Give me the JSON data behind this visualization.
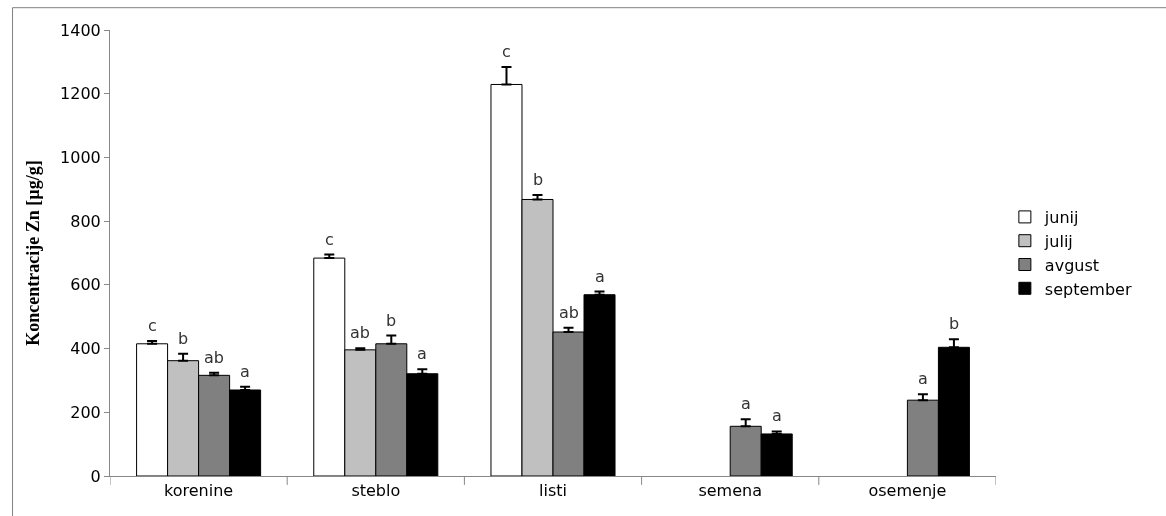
{
  "chart_data": {
    "type": "bar",
    "ylabel": "Koncentracije Zn [µg/g]",
    "categories": [
      "korenine",
      "steblo",
      "listi",
      "semena",
      "osemenje"
    ],
    "series": [
      {
        "name": "junij",
        "color": "#ffffff",
        "values": [
          415,
          684,
          1229,
          null,
          null
        ],
        "errors": [
          [
            415,
            424
          ],
          [
            684,
            695
          ],
          [
            1229,
            1284
          ],
          null,
          null
        ],
        "value_labels": [
          "c",
          "c",
          "c",
          null,
          null
        ]
      },
      {
        "name": "julij",
        "color": "#c0c0c0",
        "values": [
          362,
          396,
          868,
          null,
          null
        ],
        "errors": [
          [
            362,
            384
          ],
          [
            396,
            401
          ],
          [
            868,
            882
          ],
          null,
          null
        ],
        "value_labels": [
          "b",
          "ab",
          "b",
          null,
          null
        ]
      },
      {
        "name": "avgust",
        "color": "#808080",
        "values": [
          316,
          415,
          452,
          156,
          238
        ],
        "errors": [
          [
            316,
            324
          ],
          [
            415,
            441
          ],
          [
            452,
            465
          ],
          [
            156,
            178
          ],
          [
            238,
            257
          ]
        ],
        "value_labels": [
          "ab",
          "b",
          "ab",
          "a",
          "a"
        ]
      },
      {
        "name": "september",
        "color": "#000000",
        "values": [
          270,
          321,
          569,
          132,
          404
        ],
        "errors": [
          [
            270,
            280
          ],
          [
            321,
            335
          ],
          [
            569,
            579
          ],
          [
            132,
            140
          ],
          [
            404,
            429
          ]
        ],
        "value_labels": [
          "a",
          "a",
          "a",
          "a",
          "b"
        ]
      }
    ],
    "ylim": [
      0,
      1400
    ],
    "yticks": [
      0,
      200,
      400,
      600,
      800,
      1000,
      1200,
      1400
    ],
    "legend": "right"
  }
}
